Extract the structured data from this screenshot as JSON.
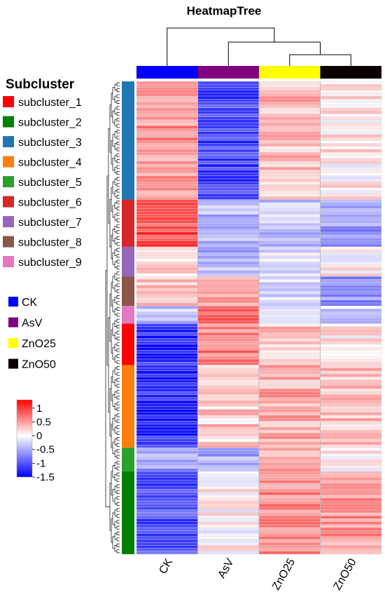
{
  "chart_data": {
    "type": "heatmap",
    "title": "HeatmapTree",
    "columns": [
      "CK",
      "AsV",
      "ZnO25",
      "ZnO50"
    ],
    "column_group_colors": [
      "#0000ff",
      "#800080",
      "#ffff00",
      "#0a0000"
    ],
    "subcluster_legend": {
      "title": "Subcluster",
      "items": [
        {
          "label": "subcluster_1",
          "color": "#ff0000"
        },
        {
          "label": "subcluster_2",
          "color": "#008000"
        },
        {
          "label": "subcluster_3",
          "color": "#1f77b4"
        },
        {
          "label": "subcluster_4",
          "color": "#ff7f0e"
        },
        {
          "label": "subcluster_5",
          "color": "#2ca02c"
        },
        {
          "label": "subcluster_6",
          "color": "#d62728"
        },
        {
          "label": "subcluster_7",
          "color": "#9467bd"
        },
        {
          "label": "subcluster_8",
          "color": "#8c564b"
        },
        {
          "label": "subcluster_9",
          "color": "#e377c2"
        }
      ]
    },
    "group_legend": {
      "items": [
        {
          "label": "CK",
          "color": "#0000ff"
        },
        {
          "label": "AsV",
          "color": "#800080"
        },
        {
          "label": "ZnO25",
          "color": "#ffff00"
        },
        {
          "label": "ZnO50",
          "color": "#0a0000"
        }
      ]
    },
    "color_scale": {
      "min": -1.5,
      "max": 1.3,
      "ticks": [
        {
          "value": 1,
          "label": "1"
        },
        {
          "value": 0.5,
          "label": "0.5"
        },
        {
          "value": 0,
          "label": "0"
        },
        {
          "value": -0.5,
          "label": "-0.5"
        },
        {
          "value": -1,
          "label": "-1"
        },
        {
          "value": -1.5,
          "label": "-1.5"
        }
      ],
      "low_color": "#0000ff",
      "mid_color": "#ffffff",
      "high_color": "#ff0000"
    },
    "row_blocks": [
      {
        "subcluster": "subcluster_3",
        "rows": 40,
        "values": [
          0.55,
          -1.1,
          0.35,
          0.1
        ]
      },
      {
        "subcluster": "subcluster_6",
        "rows": 16,
        "values": [
          0.9,
          -0.45,
          -0.35,
          -0.6
        ]
      },
      {
        "subcluster": "subcluster_7",
        "rows": 10,
        "values": [
          0.2,
          -0.45,
          -0.15,
          0.05
        ]
      },
      {
        "subcluster": "subcluster_8",
        "rows": 10,
        "values": [
          0.25,
          0.4,
          -0.2,
          -0.65
        ]
      },
      {
        "subcluster": "subcluster_9",
        "rows": 6,
        "values": [
          -0.3,
          0.85,
          -0.15,
          -0.25
        ]
      },
      {
        "subcluster": "subcluster_1",
        "rows": 14,
        "values": [
          -1.2,
          0.65,
          0.3,
          0.1
        ]
      },
      {
        "subcluster": "subcluster_4",
        "rows": 28,
        "values": [
          -1.25,
          0.25,
          0.45,
          0.35
        ]
      },
      {
        "subcluster": "subcluster_5",
        "rows": 8,
        "values": [
          -0.55,
          -0.5,
          0.35,
          0.05
        ]
      },
      {
        "subcluster": "subcluster_2",
        "rows": 28,
        "values": [
          -1.05,
          0.05,
          0.6,
          0.55
        ]
      }
    ],
    "column_dendrogram": "((CK),(AsV,(ZnO25,ZnO50)))"
  }
}
